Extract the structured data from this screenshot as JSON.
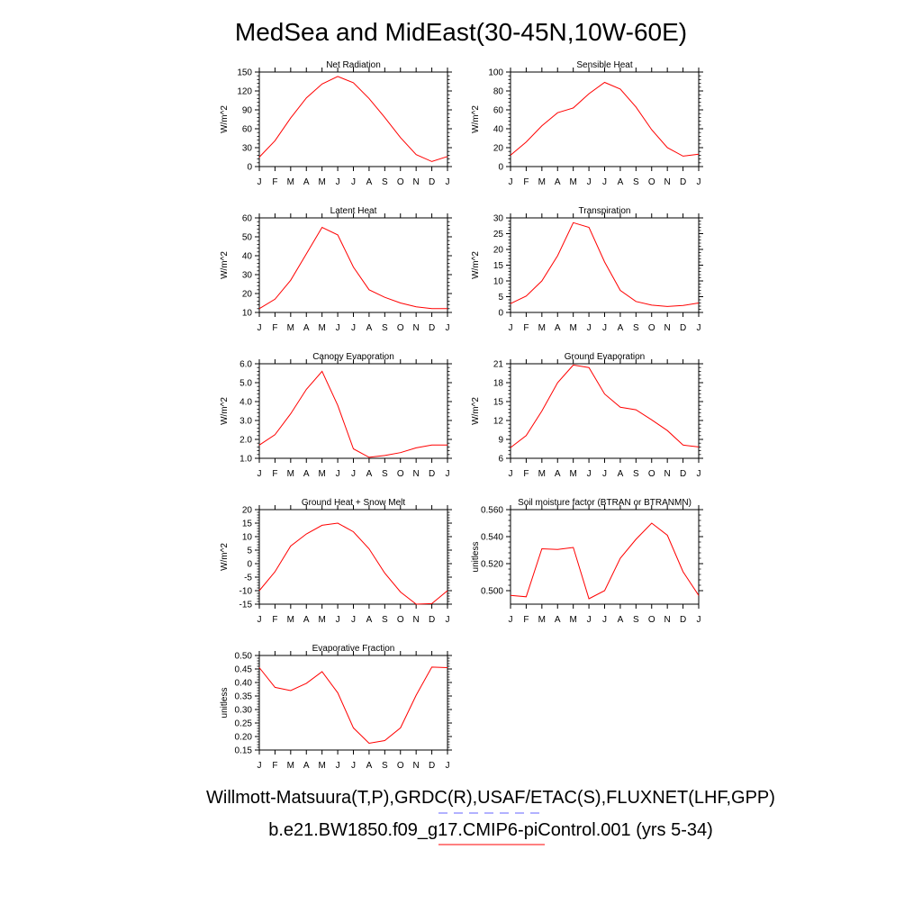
{
  "page": {
    "title": "MedSea and MidEast(30-45N,10W-60E)",
    "footer_line1": "Willmott-Matsuura(T,P),GRDC(R),USAF/ETAC(S),FLUXNET(LHF,GPP)",
    "footer_line2": "b.e21.BW1850.f09_g17.CMIP6-piControl.001 (yrs 5-34)"
  },
  "colors": {
    "series": "#ff0000",
    "legend_obs": "#6666ff",
    "axis": "#000000"
  },
  "chart_data": [
    {
      "type": "line",
      "title": "Net Radiation",
      "ylabel": "W/m^2",
      "categories": [
        "J",
        "F",
        "M",
        "A",
        "M",
        "J",
        "J",
        "A",
        "S",
        "O",
        "N",
        "D",
        "J"
      ],
      "ylim": [
        0,
        150
      ],
      "yticks": [
        0,
        30,
        60,
        90,
        120,
        150
      ],
      "ytick_labels": [
        "0",
        "30",
        "60",
        "90",
        "120",
        "150"
      ],
      "series": [
        {
          "values": [
            15,
            41,
            77,
            109,
            131,
            143,
            133,
            108,
            78,
            46,
            19,
            8,
            16
          ]
        }
      ]
    },
    {
      "type": "line",
      "title": "Sensible Heat",
      "ylabel": "W/m^2",
      "categories": [
        "J",
        "F",
        "M",
        "A",
        "M",
        "J",
        "J",
        "A",
        "S",
        "O",
        "N",
        "D",
        "J"
      ],
      "ylim": [
        0,
        100
      ],
      "yticks": [
        0,
        20,
        40,
        60,
        80,
        100
      ],
      "ytick_labels": [
        "0",
        "20",
        "40",
        "60",
        "80",
        "100"
      ],
      "series": [
        {
          "values": [
            12,
            26,
            43,
            57,
            62,
            77,
            89,
            82,
            63,
            39,
            20,
            11,
            13
          ]
        }
      ]
    },
    {
      "type": "line",
      "title": "Latent Heat",
      "ylabel": "W/m^2",
      "categories": [
        "J",
        "F",
        "M",
        "A",
        "M",
        "J",
        "J",
        "A",
        "S",
        "O",
        "N",
        "D",
        "J"
      ],
      "ylim": [
        10,
        60
      ],
      "yticks": [
        10,
        20,
        30,
        40,
        50,
        60
      ],
      "ytick_labels": [
        "10",
        "20",
        "30",
        "40",
        "50",
        "60"
      ],
      "series": [
        {
          "values": [
            12,
            17,
            27,
            41,
            55,
            51,
            34,
            22,
            18,
            15,
            13,
            12,
            12
          ]
        }
      ]
    },
    {
      "type": "line",
      "title": "Transpiration",
      "ylabel": "W/m^2",
      "categories": [
        "J",
        "F",
        "M",
        "A",
        "M",
        "J",
        "J",
        "A",
        "S",
        "O",
        "N",
        "D",
        "J"
      ],
      "ylim": [
        0,
        30
      ],
      "yticks": [
        0,
        5,
        10,
        15,
        20,
        25,
        30
      ],
      "ytick_labels": [
        "0",
        "5",
        "10",
        "15",
        "20",
        "25",
        "30"
      ],
      "series": [
        {
          "values": [
            2.8,
            5.2,
            10,
            18,
            28.5,
            27,
            16,
            7,
            3.5,
            2.3,
            1.9,
            2.2,
            3
          ]
        }
      ]
    },
    {
      "type": "line",
      "title": "Canopy Evaporation",
      "ylabel": "W/m^2",
      "categories": [
        "J",
        "F",
        "M",
        "A",
        "M",
        "J",
        "J",
        "A",
        "S",
        "O",
        "N",
        "D",
        "J"
      ],
      "ylim": [
        1.0,
        6.0
      ],
      "yticks": [
        1.0,
        2.0,
        3.0,
        4.0,
        5.0,
        6.0
      ],
      "ytick_labels": [
        "1.0",
        "2.0",
        "3.0",
        "4.0",
        "5.0",
        "6.0"
      ],
      "series": [
        {
          "values": [
            1.7,
            2.25,
            3.35,
            4.65,
            5.6,
            3.8,
            1.5,
            1.05,
            1.15,
            1.3,
            1.55,
            1.7,
            1.7
          ]
        }
      ]
    },
    {
      "type": "line",
      "title": "Ground Evaporation",
      "ylabel": "W/m^2",
      "categories": [
        "J",
        "F",
        "M",
        "A",
        "M",
        "J",
        "J",
        "A",
        "S",
        "O",
        "N",
        "D",
        "J"
      ],
      "ylim": [
        6,
        21
      ],
      "yticks": [
        6,
        9,
        12,
        15,
        18,
        21
      ],
      "ytick_labels": [
        "6",
        "9",
        "12",
        "15",
        "18",
        "21"
      ],
      "series": [
        {
          "values": [
            7.7,
            9.6,
            13.5,
            18,
            20.8,
            20.4,
            16.2,
            14.1,
            13.7,
            12.1,
            10.4,
            8.1,
            7.8
          ]
        }
      ]
    },
    {
      "type": "line",
      "title": "Ground Heat + Snow Melt",
      "ylabel": "W/m^2",
      "categories": [
        "J",
        "F",
        "M",
        "A",
        "M",
        "J",
        "J",
        "A",
        "S",
        "O",
        "N",
        "D",
        "J"
      ],
      "ylim": [
        -15,
        20
      ],
      "yticks": [
        -15,
        -10,
        -5,
        0,
        5,
        10,
        15,
        20
      ],
      "ytick_labels": [
        "-15",
        "-10",
        "-5",
        "0",
        "5",
        "10",
        "15",
        "20"
      ],
      "series": [
        {
          "values": [
            -10,
            -3,
            6.5,
            11,
            14.2,
            15,
            11.8,
            5.5,
            -3.5,
            -10.5,
            -15,
            -14.8,
            -10
          ]
        }
      ]
    },
    {
      "type": "line",
      "title": "Soil moisture factor (BTRAN or BTRANMN)",
      "ylabel": "unitless",
      "categories": [
        "J",
        "F",
        "M",
        "A",
        "M",
        "J",
        "J",
        "A",
        "S",
        "O",
        "N",
        "D",
        "J"
      ],
      "ylim": [
        0.49,
        0.56
      ],
      "yticks": [
        0.5,
        0.52,
        0.54,
        0.56
      ],
      "ytick_labels": [
        "0.500",
        "0.520",
        "0.540",
        "0.560"
      ],
      "series": [
        {
          "values": [
            0.4965,
            0.4955,
            0.531,
            0.5305,
            0.532,
            0.494,
            0.5,
            0.524,
            0.538,
            0.55,
            0.541,
            0.514,
            0.4965
          ]
        }
      ]
    },
    {
      "type": "line",
      "title": "Evaporative Fraction",
      "ylabel": "unitless",
      "categories": [
        "J",
        "F",
        "M",
        "A",
        "M",
        "J",
        "J",
        "A",
        "S",
        "O",
        "N",
        "D",
        "J"
      ],
      "ylim": [
        0.15,
        0.5
      ],
      "yticks": [
        0.15,
        0.2,
        0.25,
        0.3,
        0.35,
        0.4,
        0.45,
        0.5
      ],
      "ytick_labels": [
        "0.15",
        "0.20",
        "0.25",
        "0.30",
        "0.35",
        "0.40",
        "0.45",
        "0.50"
      ],
      "series": [
        {
          "values": [
            0.455,
            0.382,
            0.37,
            0.397,
            0.44,
            0.362,
            0.232,
            0.175,
            0.185,
            0.232,
            0.353,
            0.457,
            0.455
          ]
        }
      ]
    }
  ]
}
